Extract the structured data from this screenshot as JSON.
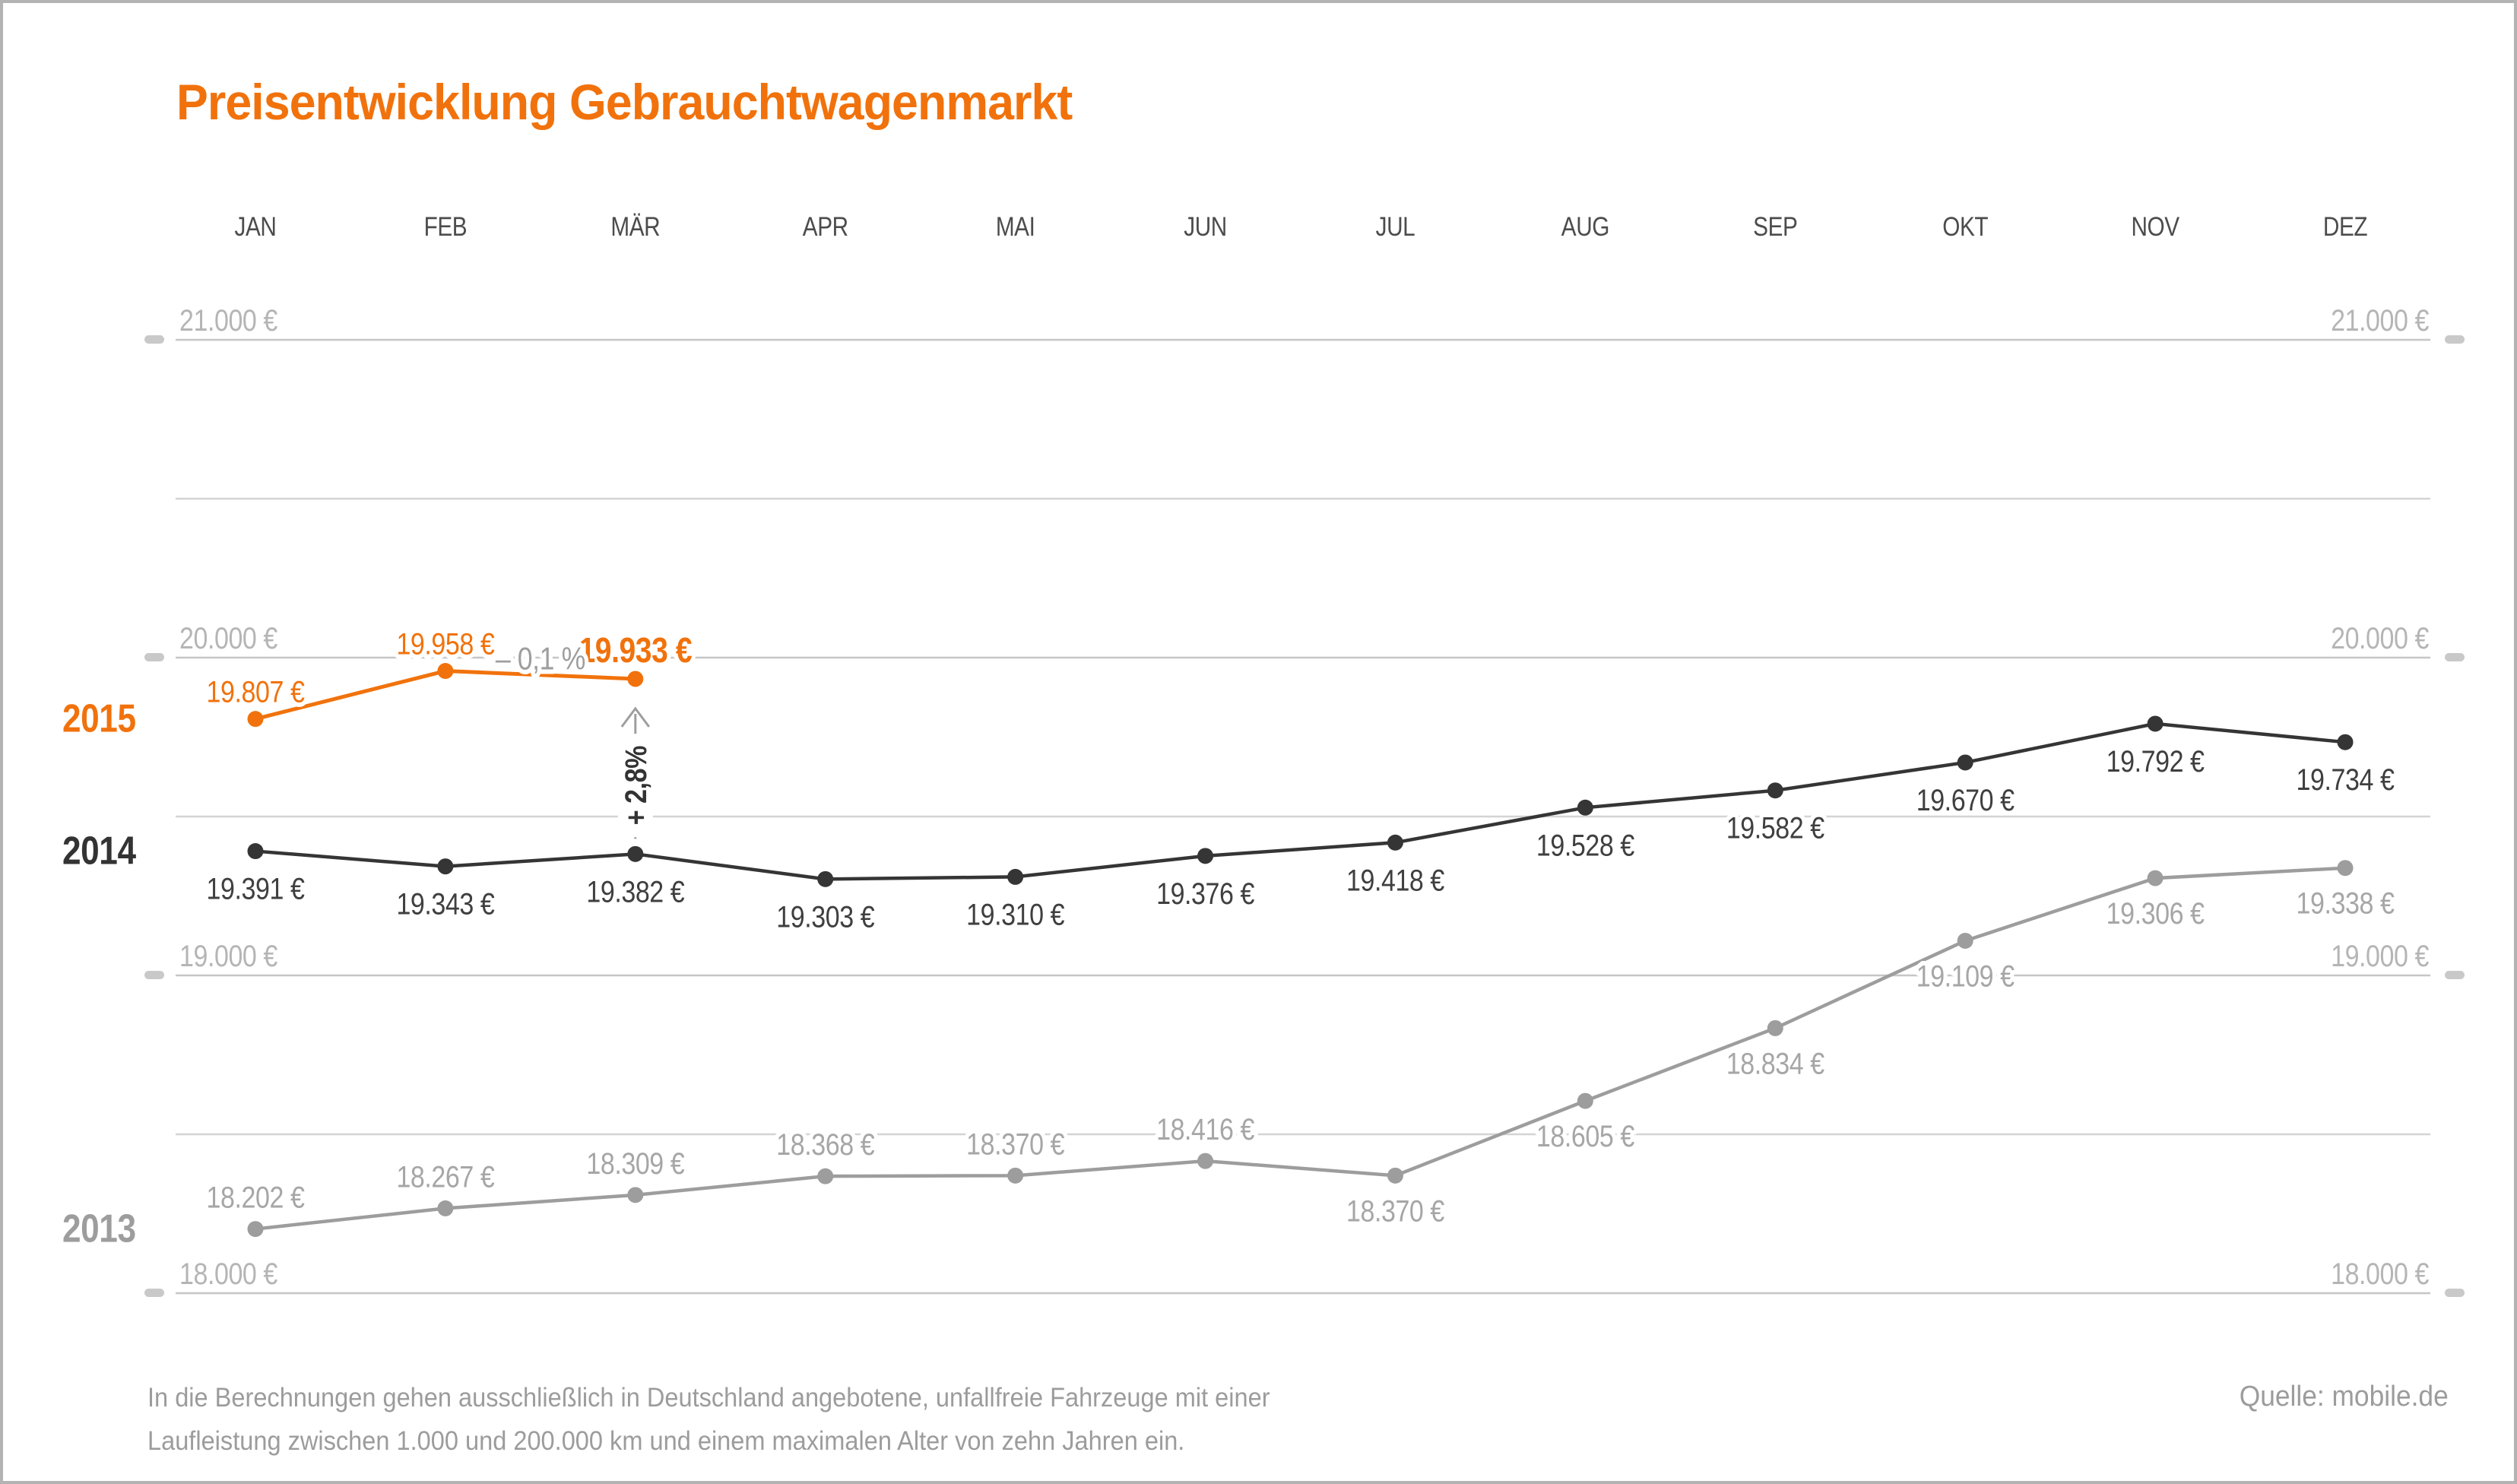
{
  "title": "Preisentwicklung Gebrauchtwagenmarkt",
  "footnote": {
    "line1": "In die Berechnungen gehen ausschließlich in Deutschland angebotene, unfallfreie Fahrzeuge mit einer",
    "line2": "Laufleistung zwischen 1.000 und 200.000 km und einem maximalen Alter von zehn Jahren ein."
  },
  "source": "Quelle: mobile.de",
  "colors": {
    "accent_orange": "#F1720C",
    "dark_series": "#353535",
    "gray_series": "#9D9D9D",
    "axis_label": "#b5b5b5",
    "gridline_major": "#c6c6c6",
    "gridline_minor": "#d4d4d4",
    "tick": "#c9c9c9",
    "month_label": "#4c4c4c",
    "annotation_gray": "#9e9e9e"
  },
  "chart_data": {
    "type": "line",
    "categories": [
      "JAN",
      "FEB",
      "MÄR",
      "APR",
      "MAI",
      "JUN",
      "JUL",
      "AUG",
      "SEP",
      "OKT",
      "NOV",
      "DEZ"
    ],
    "y_axis": {
      "min": 18000,
      "max": 21000,
      "major_step": 1000,
      "minor_step": 500,
      "labels_both_sides": true,
      "ticks": [
        {
          "value": 21000,
          "label": "21.000 €"
        },
        {
          "value": 20000,
          "label": "20.000 €"
        },
        {
          "value": 19000,
          "label": "19.000 €"
        },
        {
          "value": 18000,
          "label": "18.000 €"
        }
      ]
    },
    "series": [
      {
        "name": "2013",
        "color": "#9D9D9D",
        "label_color": "#a6a6a6",
        "values": [
          18202,
          18267,
          18309,
          18368,
          18370,
          18416,
          18370,
          18605,
          18834,
          19109,
          19306,
          19338
        ],
        "value_labels": [
          "18.202 €",
          "18.267 €",
          "18.309 €",
          "18.368 €",
          "18.370 €",
          "18.416 €",
          "18.370 €",
          "18.605 €",
          "18.834 €",
          "19.109 €",
          "19.306 €",
          "19.338 €"
        ],
        "label_sides": [
          "above",
          "above",
          "above",
          "above",
          "above",
          "above",
          "below",
          "below",
          "below",
          "below",
          "below",
          "below"
        ],
        "bold_labels": [
          false,
          false,
          false,
          false,
          false,
          false,
          false,
          false,
          false,
          false,
          false,
          false
        ]
      },
      {
        "name": "2014",
        "color": "#353535",
        "label_color": "#3f3f3f",
        "values": [
          19391,
          19343,
          19382,
          19303,
          19310,
          19376,
          19418,
          19528,
          19582,
          19670,
          19792,
          19734
        ],
        "value_labels": [
          "19.391 €",
          "19.343 €",
          "19.382 €",
          "19.303 €",
          "19.310 €",
          "19.376 €",
          "19.418 €",
          "19.528 €",
          "19.582 €",
          "19.670 €",
          "19.792 €",
          "19.734 €"
        ],
        "label_sides": [
          "below",
          "below",
          "below",
          "below",
          "below",
          "below",
          "below",
          "below",
          "below",
          "below",
          "below",
          "below"
        ],
        "bold_labels": [
          false,
          false,
          false,
          false,
          false,
          false,
          false,
          false,
          false,
          false,
          false,
          false
        ]
      },
      {
        "name": "2015",
        "color": "#F1720C",
        "label_color": "#F1720C",
        "values": [
          19807,
          19958,
          19933
        ],
        "value_labels": [
          "19.807 €",
          "19.958 €",
          "19.933 €"
        ],
        "label_sides": [
          "above",
          "above",
          "above"
        ],
        "bold_labels": [
          false,
          false,
          true
        ]
      }
    ],
    "annotations": [
      {
        "type": "segment-label",
        "text": "– 0,1 %",
        "series": "2015",
        "between_months": [
          "FEB",
          "MÄR"
        ]
      },
      {
        "type": "vertical-arrow",
        "text": "+ 2,8%",
        "month": "MÄR",
        "from_series": "2014",
        "to_series": "2015"
      }
    ]
  }
}
